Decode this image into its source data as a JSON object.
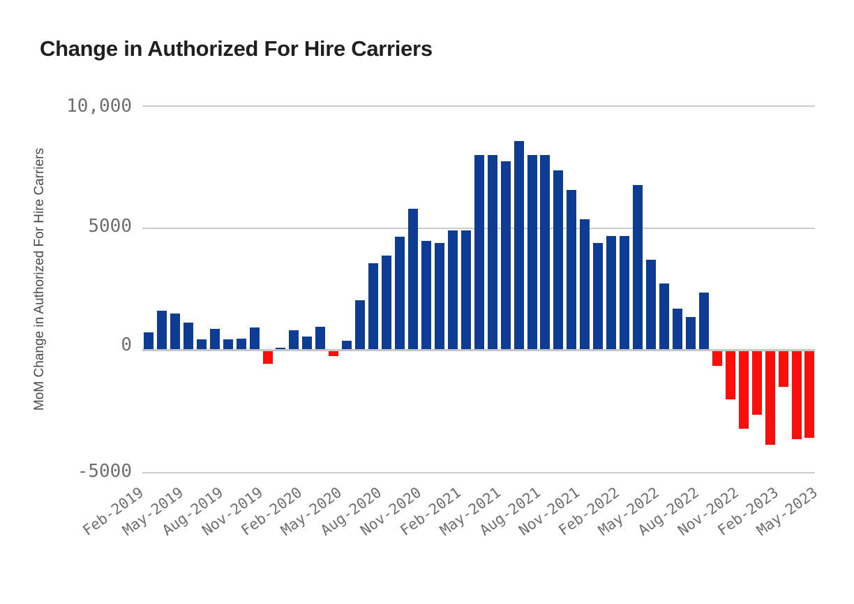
{
  "page": {
    "background": "#ffffff"
  },
  "chart_data": {
    "type": "bar",
    "title": "Change in Authorized For Hire Carriers",
    "xlabel": "",
    "ylabel": "MoM Change in Authorized For Hire Carriers",
    "grid": "horizontal",
    "legend": "none",
    "ylim": [
      -5000,
      10000
    ],
    "y_ticks": [
      {
        "value": 10000,
        "label": "10,000"
      },
      {
        "value": 5000,
        "label": "5000"
      },
      {
        "value": 0,
        "label": "0"
      },
      {
        "value": -5000,
        "label": "-5000"
      }
    ],
    "x_tick_labels": [
      "Feb-2019",
      "May-2019",
      "Aug-2019",
      "Nov-2019",
      "Feb-2020",
      "May-2020",
      "Aug-2020",
      "Nov-2020",
      "Feb-2021",
      "May-2021",
      "Aug-2021",
      "Nov-2021",
      "Feb-2022",
      "May-2022",
      "Aug-2022",
      "Nov-2022",
      "Feb-2023",
      "May-2023"
    ],
    "categories": [
      "Feb-2019",
      "Mar-2019",
      "Apr-2019",
      "May-2019",
      "Jun-2019",
      "Jul-2019",
      "Aug-2019",
      "Sep-2019",
      "Oct-2019",
      "Nov-2019",
      "Dec-2019",
      "Jan-2020",
      "Feb-2020",
      "Mar-2020",
      "Apr-2020",
      "May-2020",
      "Jun-2020",
      "Jul-2020",
      "Aug-2020",
      "Sep-2020",
      "Oct-2020",
      "Nov-2020",
      "Dec-2020",
      "Jan-2021",
      "Feb-2021",
      "Mar-2021",
      "Apr-2021",
      "May-2021",
      "Jun-2021",
      "Jul-2021",
      "Aug-2021",
      "Sep-2021",
      "Oct-2021",
      "Nov-2021",
      "Dec-2021",
      "Jan-2022",
      "Feb-2022",
      "Mar-2022",
      "Apr-2022",
      "May-2022",
      "Jun-2022",
      "Jul-2022",
      "Aug-2022",
      "Sep-2022",
      "Oct-2022",
      "Nov-2022",
      "Dec-2022",
      "Jan-2023",
      "Feb-2023",
      "Mar-2023",
      "Apr-2023",
      "May-2023"
    ],
    "values": [
      0,
      740,
      1620,
      1490,
      1140,
      430,
      860,
      440,
      470,
      940,
      -550,
      90,
      820,
      550,
      950,
      -240,
      380,
      2050,
      3550,
      3860,
      4640,
      5780,
      4480,
      4380,
      4900,
      4900,
      7980,
      7980,
      7740,
      8550,
      7980,
      7980,
      7360,
      6550,
      5360,
      4390,
      4670,
      4670,
      6750,
      3690,
      2740,
      1690,
      1370,
      2370,
      -640,
      -2020,
      -3210,
      -2640,
      -3880,
      -1500,
      -3650,
      -3590
    ],
    "colors": {
      "positive_bar": "#0d3c92",
      "negative_bar": "#fb0f0b",
      "gridline": "#cccccc",
      "zero_line": "#c6c6c6",
      "tick_text": "#6e6e6e",
      "title_text": "#1f1f1f",
      "axis_title_text": "#4a4a4a"
    }
  }
}
